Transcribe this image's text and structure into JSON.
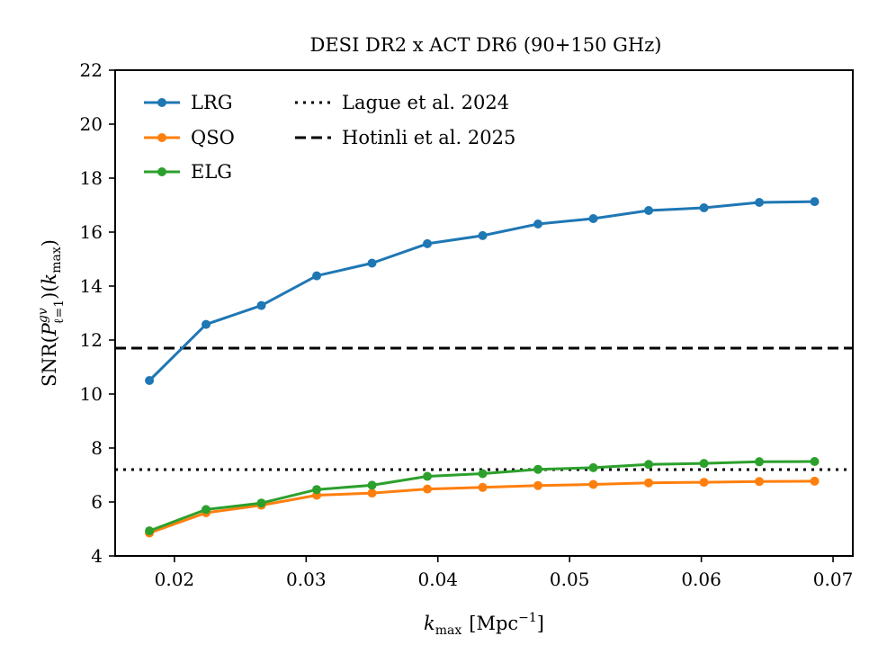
{
  "chart_data": {
    "type": "line",
    "title": "DESI DR2 x ACT DR6 (90+150 GHz)",
    "xlabel": {
      "base": "k",
      "sub": "max",
      "unit_open": "[Mpc",
      "unit_sup": "−1",
      "unit_close": "]"
    },
    "ylabel": {
      "prefix": "SNR(",
      "P": "P",
      "sup": "gv",
      "sub": "ℓ=1",
      "mid": ")(",
      "k": "k",
      "ksub": "max",
      "close": ")"
    },
    "xlim": [
      0.0155,
      0.0715
    ],
    "ylim": [
      4,
      22
    ],
    "xticks": [
      0.02,
      0.03,
      0.04,
      0.05,
      0.06,
      0.07
    ],
    "xtick_labels": [
      "0.02",
      "0.03",
      "0.04",
      "0.05",
      "0.06",
      "0.07"
    ],
    "yticks": [
      4,
      6,
      8,
      10,
      12,
      14,
      16,
      18,
      20,
      22
    ],
    "ytick_labels": [
      "4",
      "6",
      "8",
      "10",
      "12",
      "14",
      "16",
      "18",
      "20",
      "22"
    ],
    "x": [
      0.0181,
      0.0224,
      0.0266,
      0.0308,
      0.035,
      0.0392,
      0.0434,
      0.0476,
      0.0518,
      0.056,
      0.0602,
      0.0644,
      0.0686
    ],
    "series": [
      {
        "name": "LRG",
        "color": "#1f77b4",
        "values": [
          10.5,
          12.58,
          13.28,
          14.38,
          14.85,
          15.57,
          15.87,
          16.3,
          16.5,
          16.8,
          16.9,
          17.1,
          17.13
        ]
      },
      {
        "name": "QSO",
        "color": "#ff7f0e",
        "values": [
          4.85,
          5.6,
          5.88,
          6.25,
          6.33,
          6.48,
          6.54,
          6.61,
          6.65,
          6.71,
          6.73,
          6.76,
          6.77
        ]
      },
      {
        "name": "ELG",
        "color": "#2ca02c",
        "values": [
          4.93,
          5.72,
          5.96,
          6.46,
          6.62,
          6.95,
          7.05,
          7.21,
          7.27,
          7.39,
          7.43,
          7.49,
          7.5
        ]
      }
    ],
    "hlines": [
      {
        "name": "Lague et al. 2024",
        "value": 7.2,
        "style": "dotted",
        "color": "#000000"
      },
      {
        "name": "Hotinli et al. 2025",
        "value": 11.7,
        "style": "dashed",
        "color": "#000000"
      }
    ],
    "legend_position": "top-left",
    "grid": false
  }
}
